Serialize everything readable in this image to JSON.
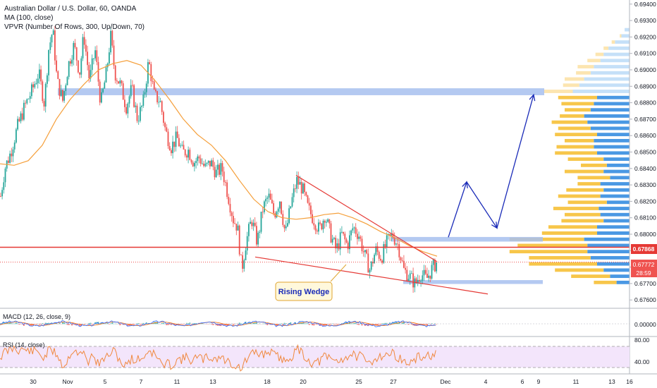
{
  "header": {
    "symbol_line": "Australian Dollar / U.S. Dollar, 60, OANDA",
    "ma_line": "MA (100, close)",
    "vpvr_line": "VPVR (Number Of Rows, 300, Up/Down, 70)"
  },
  "annotation": {
    "text": "Rising Wedge"
  },
  "price_tags": {
    "current": "0.67868",
    "last": "0.67772",
    "countdown": "28:59"
  },
  "panes": {
    "macd_title": "MACD (12, 26, close, 9)",
    "macd_tick": "0.00000",
    "rsi_title": "RSI (14, close)",
    "rsi_ticks": [
      "80.00",
      "40.00"
    ]
  },
  "colors": {
    "up": "#26a69a",
    "down": "#ef5350",
    "ma": "#f59f3a",
    "zone": "#a7c0ef",
    "trend": "#e53935",
    "arrow": "#1a2bb8",
    "hline": "#e53935",
    "vp_up_strong": "#f7c64a",
    "vp_up_light": "#fce5b0",
    "vp_down_strong": "#4a98e3",
    "vp_down_light": "#c5e0f8",
    "rsi_fill": "#f3e5fb",
    "rsi_line": "#f0883e",
    "macd_line": "#2962ff",
    "signal_line": "#ff6d00"
  },
  "chart_data": {
    "type": "candlestick",
    "title": "Australian Dollar / U.S. Dollar, 60, OANDA",
    "x_ticks": [
      "30",
      "Nov",
      "5",
      "7",
      "11",
      "13",
      "18",
      "20",
      "25",
      "27",
      "Dec",
      "4",
      "6",
      "9",
      "11",
      "13",
      "16"
    ],
    "y_ticks": [
      "0.69400",
      "0.69300",
      "0.69200",
      "0.69100",
      "0.69000",
      "0.68900",
      "0.68800",
      "0.68700",
      "0.68600",
      "0.68500",
      "0.68400",
      "0.68300",
      "0.68200",
      "0.68100",
      "0.68000",
      "0.67900",
      "0.67800",
      "0.67700",
      "0.67600"
    ],
    "ylim": [
      0.6755,
      0.6945
    ],
    "price_path": [
      [
        0,
        0.682
      ],
      [
        6,
        0.6838
      ],
      [
        14,
        0.6848
      ],
      [
        24,
        0.6865
      ],
      [
        34,
        0.6878
      ],
      [
        44,
        0.6888
      ],
      [
        54,
        0.69
      ],
      [
        62,
        0.688
      ],
      [
        68,
        0.6915
      ],
      [
        74,
        0.6928
      ],
      [
        80,
        0.6895
      ],
      [
        88,
        0.6882
      ],
      [
        96,
        0.6905
      ],
      [
        104,
        0.6918
      ],
      [
        112,
        0.69
      ],
      [
        118,
        0.6925
      ],
      [
        126,
        0.6895
      ],
      [
        134,
        0.6915
      ],
      [
        142,
        0.688
      ],
      [
        150,
        0.69
      ],
      [
        156,
        0.6924
      ],
      [
        162,
        0.69
      ],
      [
        170,
        0.6892
      ],
      [
        178,
        0.6878
      ],
      [
        186,
        0.689
      ],
      [
        194,
        0.687
      ],
      [
        202,
        0.688
      ],
      [
        210,
        0.6908
      ],
      [
        218,
        0.6885
      ],
      [
        226,
        0.6882
      ],
      [
        234,
        0.6862
      ],
      [
        242,
        0.6852
      ],
      [
        250,
        0.6858
      ],
      [
        258,
        0.6848
      ],
      [
        266,
        0.685
      ],
      [
        274,
        0.6842
      ],
      [
        282,
        0.6845
      ],
      [
        290,
        0.6838
      ],
      [
        298,
        0.6842
      ],
      [
        306,
        0.6835
      ],
      [
        314,
        0.6838
      ],
      [
        322,
        0.6822
      ],
      [
        330,
        0.6805
      ],
      [
        336,
        0.68
      ],
      [
        342,
        0.6772
      ],
      [
        348,
        0.679
      ],
      [
        356,
        0.6805
      ],
      [
        364,
        0.679
      ],
      [
        372,
        0.6812
      ],
      [
        380,
        0.682
      ],
      [
        388,
        0.6808
      ],
      [
        396,
        0.6818
      ],
      [
        404,
        0.6795
      ],
      [
        412,
        0.6815
      ],
      [
        420,
        0.683
      ],
      [
        428,
        0.6825
      ],
      [
        436,
        0.6812
      ],
      [
        444,
        0.6805
      ],
      [
        452,
        0.6798
      ],
      [
        460,
        0.6808
      ],
      [
        468,
        0.6795
      ],
      [
        476,
        0.6785
      ],
      [
        484,
        0.6795
      ],
      [
        492,
        0.6788
      ],
      [
        500,
        0.68
      ],
      [
        508,
        0.6795
      ],
      [
        516,
        0.6782
      ],
      [
        524,
        0.6772
      ],
      [
        532,
        0.6785
      ],
      [
        540,
        0.678
      ],
      [
        548,
        0.679
      ],
      [
        556,
        0.6795
      ],
      [
        564,
        0.6788
      ],
      [
        572,
        0.6772
      ],
      [
        580,
        0.6768
      ],
      [
        588,
        0.6763
      ],
      [
        596,
        0.677
      ],
      [
        604,
        0.6766
      ],
      [
        612,
        0.6773
      ],
      [
        620,
        0.6778
      ]
    ],
    "ma_100": [
      [
        0,
        0.6841
      ],
      [
        20,
        0.684
      ],
      [
        40,
        0.6843
      ],
      [
        60,
        0.6853
      ],
      [
        80,
        0.687
      ],
      [
        100,
        0.6883
      ],
      [
        120,
        0.6893
      ],
      [
        140,
        0.6902
      ],
      [
        160,
        0.6906
      ],
      [
        180,
        0.6908
      ],
      [
        200,
        0.6905
      ],
      [
        220,
        0.6895
      ],
      [
        240,
        0.6883
      ],
      [
        260,
        0.687
      ],
      [
        280,
        0.686
      ],
      [
        300,
        0.6853
      ],
      [
        320,
        0.6843
      ],
      [
        340,
        0.683
      ],
      [
        360,
        0.6818
      ],
      [
        380,
        0.681
      ],
      [
        400,
        0.6806
      ],
      [
        420,
        0.6805
      ],
      [
        440,
        0.6806
      ],
      [
        460,
        0.6808
      ],
      [
        480,
        0.6809
      ],
      [
        500,
        0.6806
      ],
      [
        520,
        0.6802
      ],
      [
        540,
        0.6797
      ],
      [
        560,
        0.6793
      ],
      [
        580,
        0.6788
      ],
      [
        600,
        0.6784
      ],
      [
        620,
        0.6781
      ]
    ],
    "zones": [
      {
        "x0": 82,
        "x1": 772,
        "y0": 0.689,
        "y1": 0.68855
      },
      {
        "x0": 555,
        "x1": 770,
        "y0": 0.67935,
        "y1": 0.67905
      },
      {
        "x0": 572,
        "x1": 770,
        "y0": 0.67655,
        "y1": 0.6763
      }
    ],
    "horizontal_line": 0.67868,
    "dotted_line": 0.67772,
    "wedge_upper": [
      [
        420,
        0.68335
      ],
      [
        620,
        0.67775
      ]
    ],
    "wedge_lower": [
      [
        362,
        0.67805
      ],
      [
        692,
        0.67565
      ]
    ],
    "projection": [
      [
        636,
        0.67933
      ],
      [
        662,
        0.68292
      ],
      [
        705,
        0.67993
      ],
      [
        757,
        0.68858
      ]
    ],
    "volume_profile": [
      [
        0.6928,
        0.0,
        0.3
      ],
      [
        0.6924,
        0.1,
        0.5
      ],
      [
        0.692,
        0.2,
        0.9
      ],
      [
        0.6916,
        0.3,
        1.3
      ],
      [
        0.6912,
        0.5,
        1.6
      ],
      [
        0.6908,
        0.8,
        1.8
      ],
      [
        0.6904,
        1.0,
        2.2
      ],
      [
        0.69,
        0.9,
        2.4
      ],
      [
        0.6896,
        1.2,
        2.8
      ],
      [
        0.6892,
        1.0,
        3.1
      ],
      [
        0.6888,
        1.8,
        3.5
      ],
      [
        0.6884,
        2.4,
        2.0
      ],
      [
        0.688,
        2.0,
        2.2
      ],
      [
        0.6876,
        1.6,
        2.4
      ],
      [
        0.6872,
        1.5,
        2.8
      ],
      [
        0.6868,
        2.2,
        2.6
      ],
      [
        0.6864,
        2.0,
        2.4
      ],
      [
        0.686,
        2.6,
        2.0
      ],
      [
        0.6856,
        1.8,
        2.2
      ],
      [
        0.6852,
        2.3,
        2.2
      ],
      [
        0.6848,
        2.6,
        2.0
      ],
      [
        0.6844,
        2.2,
        1.6
      ],
      [
        0.684,
        1.6,
        1.4
      ],
      [
        0.6836,
        2.4,
        1.6
      ],
      [
        0.6832,
        2.0,
        1.2
      ],
      [
        0.6828,
        1.4,
        1.8
      ],
      [
        0.6824,
        2.3,
        1.6
      ],
      [
        0.682,
        2.6,
        1.8
      ],
      [
        0.6816,
        2.4,
        1.4
      ],
      [
        0.6812,
        2.8,
        1.9
      ],
      [
        0.6808,
        2.2,
        1.8
      ],
      [
        0.6804,
        2.6,
        1.6
      ],
      [
        0.68,
        3.0,
        2.0
      ],
      [
        0.6796,
        3.4,
        2.0
      ],
      [
        0.6792,
        4.6,
        2.8
      ],
      [
        0.6788,
        4.3,
        2.6
      ],
      [
        0.6784,
        4.8,
        2.6
      ],
      [
        0.678,
        3.8,
        2.4
      ],
      [
        0.6776,
        4.2,
        2.0
      ],
      [
        0.6772,
        3.0,
        1.6
      ],
      [
        0.6768,
        2.4,
        1.2
      ],
      [
        0.6764,
        1.4,
        0.8
      ]
    ],
    "legend": [
      "MA (100, close)",
      "VPVR (Number Of Rows, 300, Up/Down, 70)"
    ]
  }
}
